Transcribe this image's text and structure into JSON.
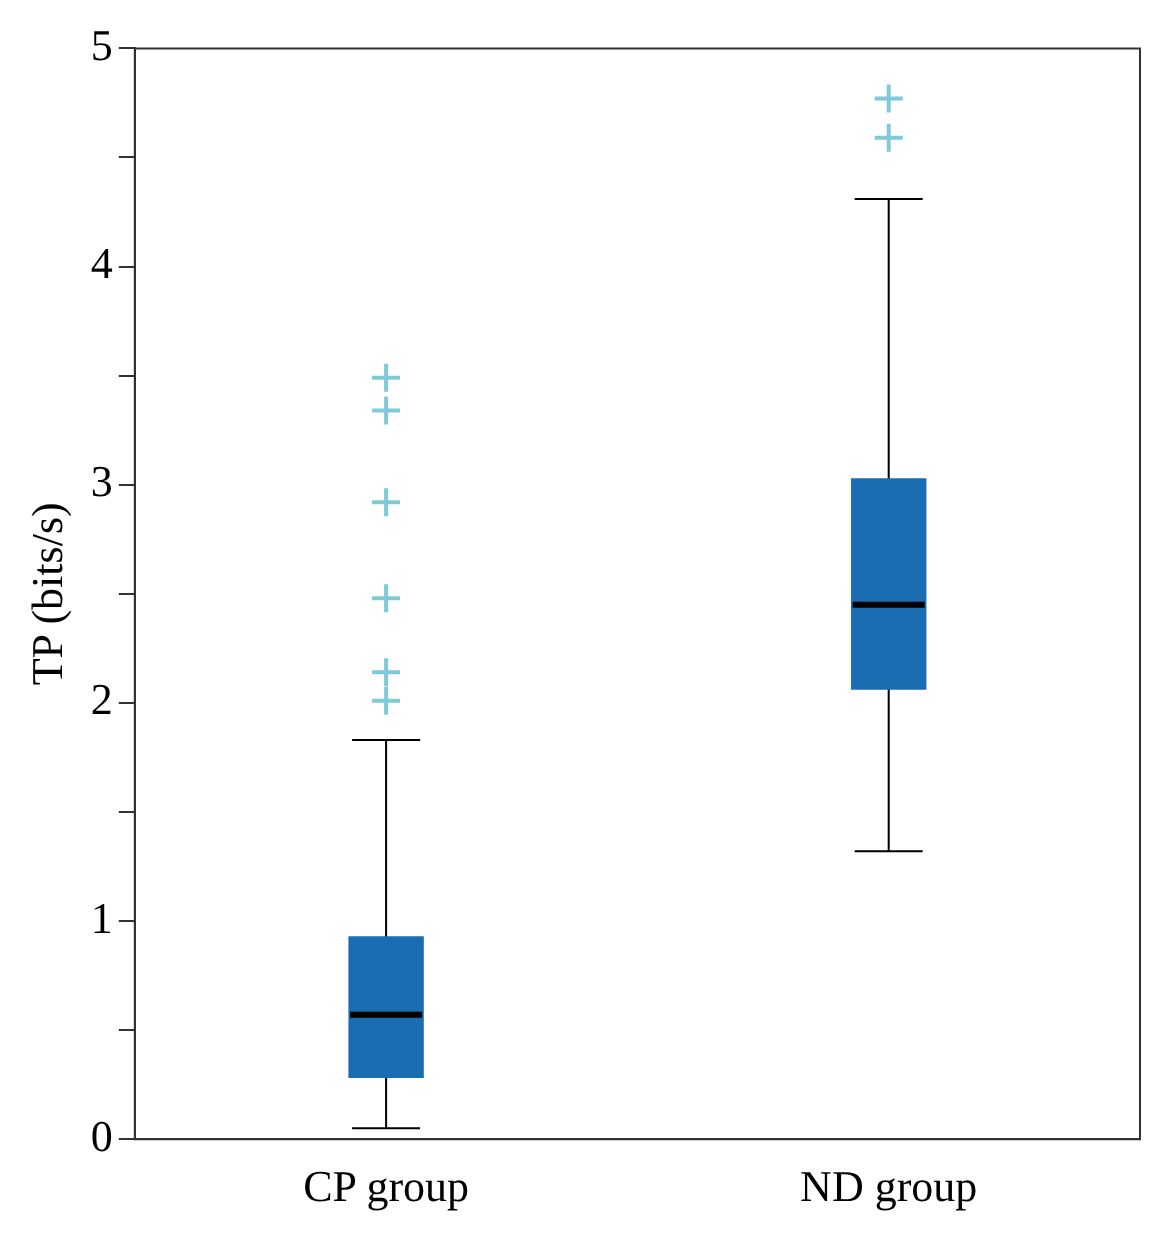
{
  "chart_data": {
    "type": "box",
    "ylabel": "TP (bits/s)",
    "categories": [
      "CP group",
      "ND group"
    ],
    "series": [
      {
        "color": "#1a6db0",
        "boxes": [
          {
            "low": 0.05,
            "q1": 0.28,
            "median": 0.57,
            "q3": 0.93,
            "high": 1.83,
            "outliers": [
              2.01,
              2.14,
              2.48,
              2.92,
              3.34,
              3.49
            ]
          },
          {
            "low": 1.32,
            "q1": 2.06,
            "median": 2.45,
            "q3": 3.03,
            "high": 4.31,
            "outliers": [
              4.59,
              4.77
            ]
          }
        ]
      }
    ],
    "ylim": [
      0,
      5
    ],
    "yticks": [
      0,
      {
        "value": 0.5,
        "label": null
      },
      1,
      {
        "value": 1.5,
        "label": null
      },
      2,
      {
        "value": 2.5,
        "label": null
      },
      3,
      {
        "value": 3.5,
        "label": null
      },
      4,
      {
        "value": 4.5,
        "label": null
      },
      5
    ],
    "marker": "cross",
    "grid": false,
    "legend": false
  }
}
